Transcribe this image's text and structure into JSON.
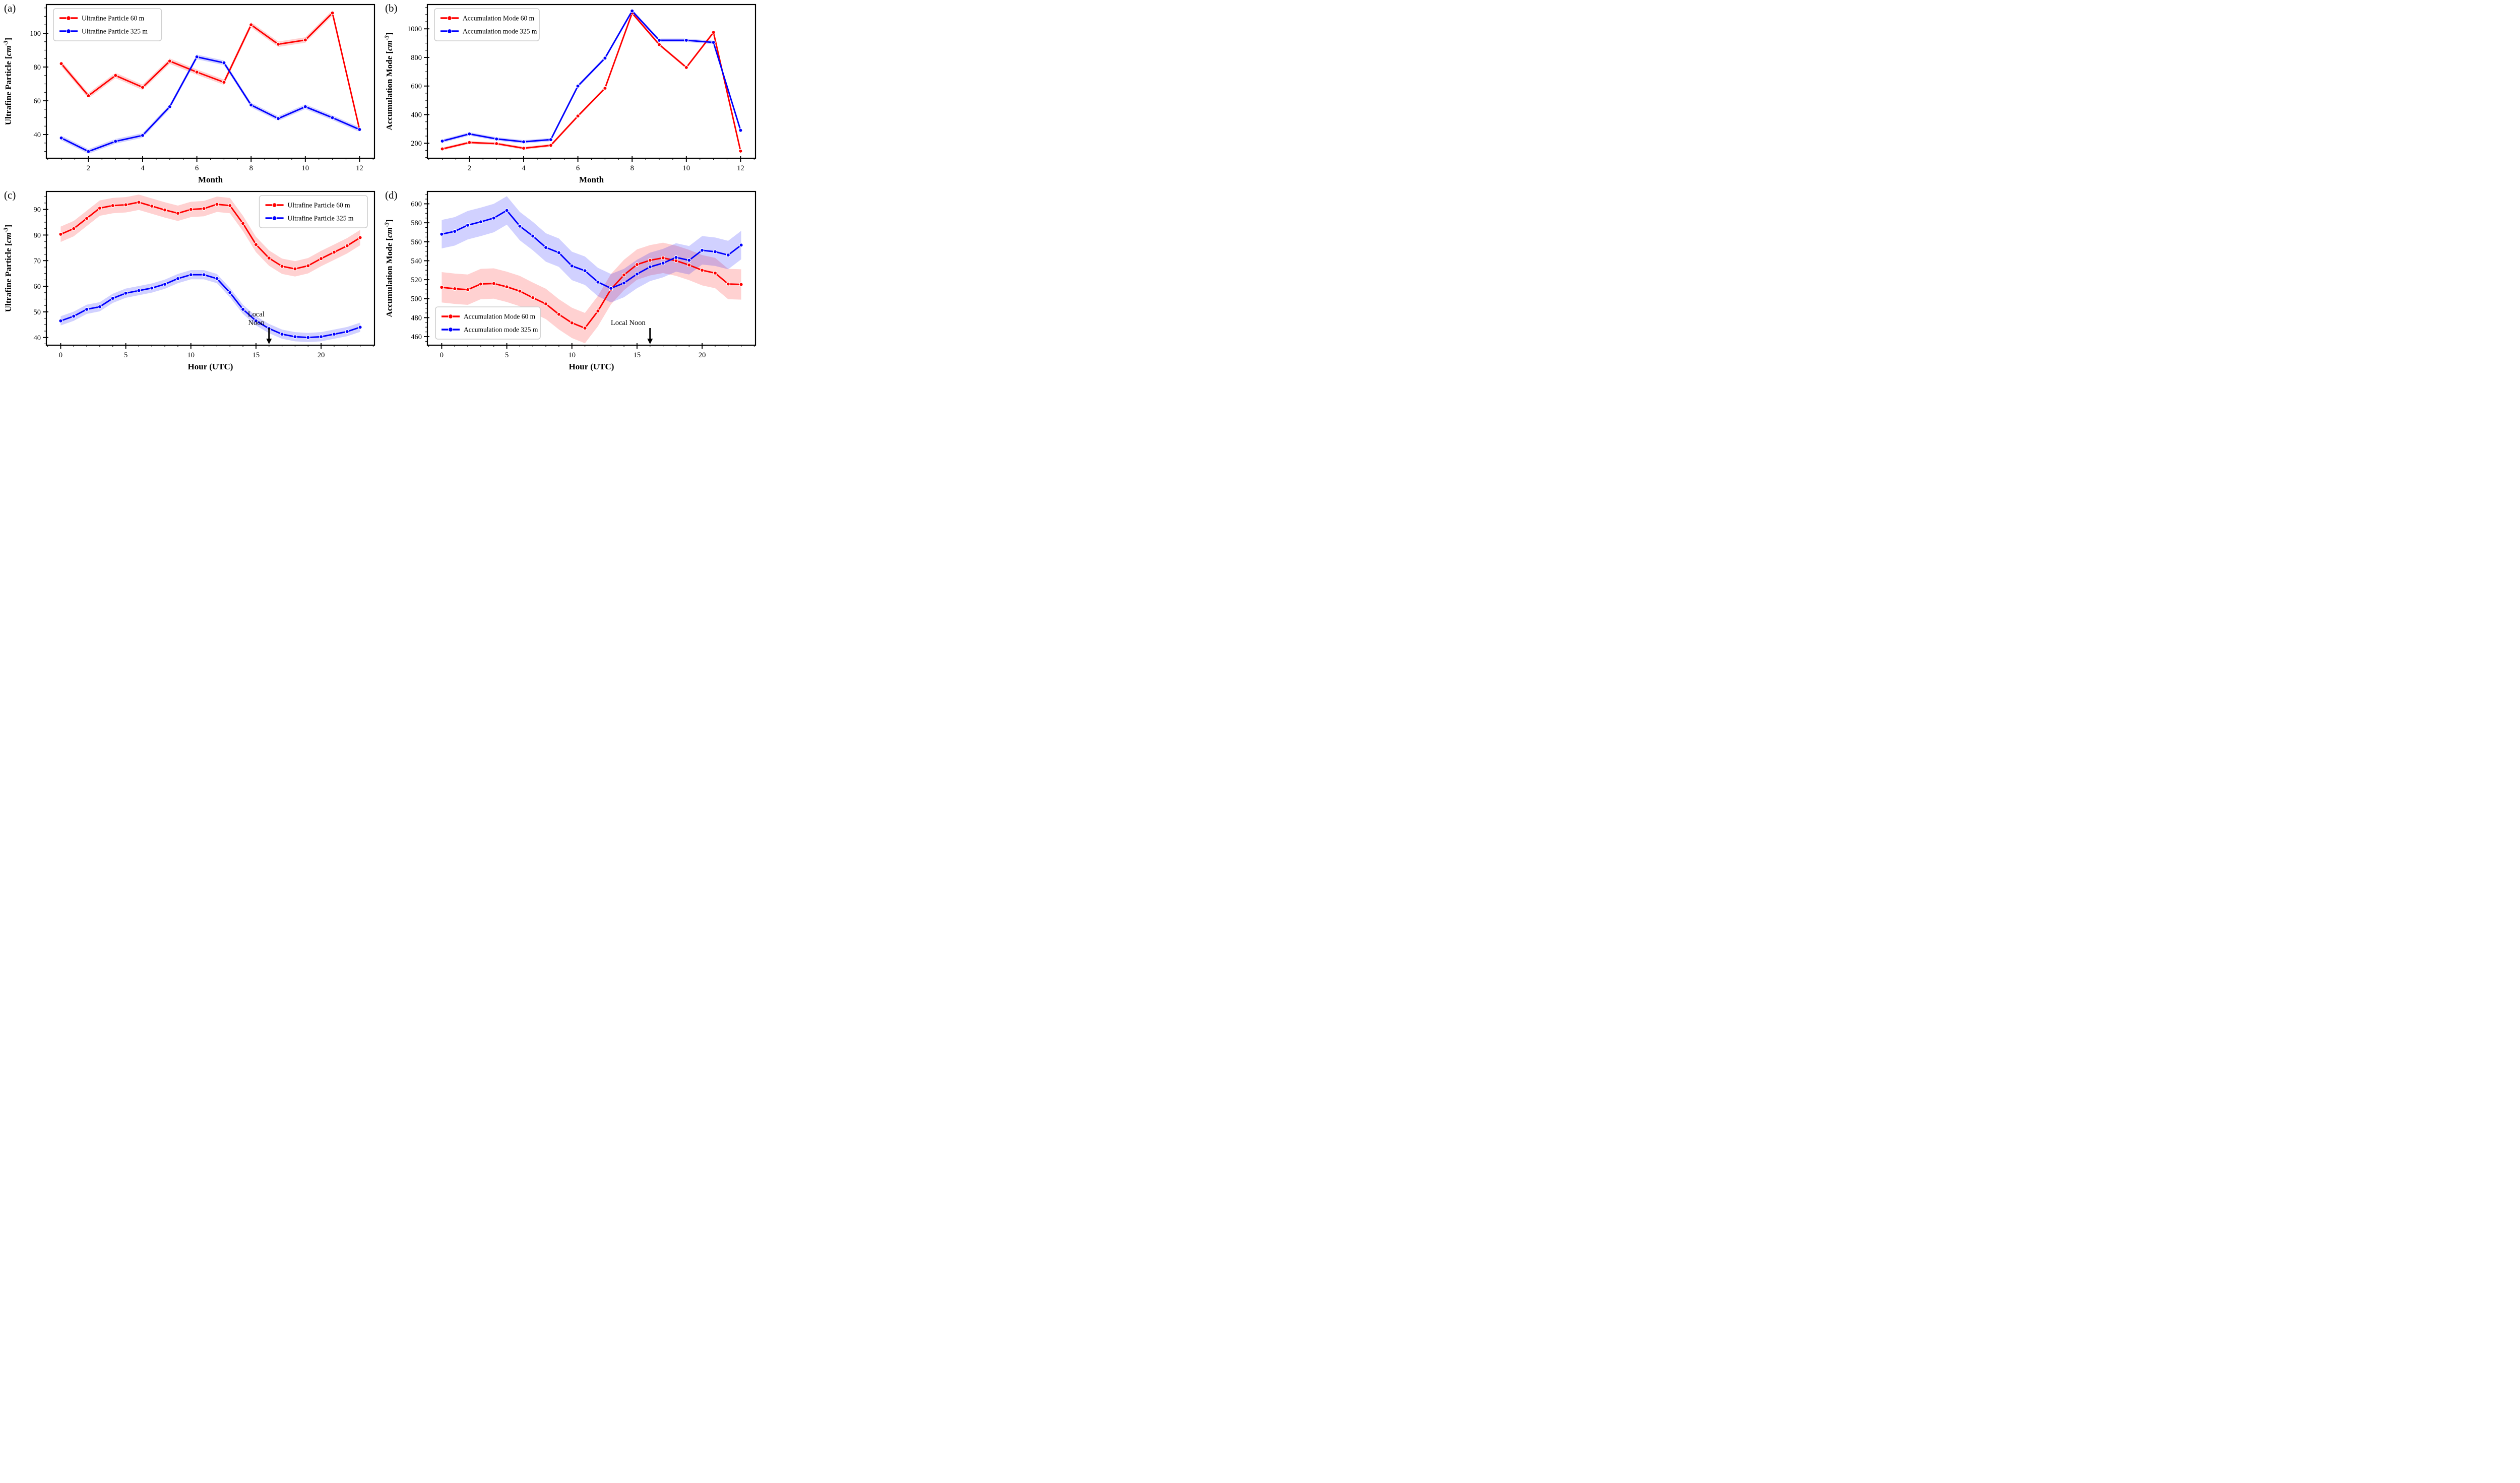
{
  "figure": {
    "background": "#ffffff",
    "accent_red": "#ff0000",
    "accent_blue": "#0000ff"
  },
  "chart_data": [
    {
      "id": "a",
      "type": "line",
      "corner_label": "(a)",
      "xlabel": "Month",
      "ylabel_prefix": "Ultrafine Particle",
      "ylabel_unit": "cm",
      "ylabel_exponent": "-3",
      "x": [
        1,
        2,
        3,
        4,
        5,
        6,
        7,
        8,
        9,
        10,
        11,
        12
      ],
      "xlim": [
        0.45,
        12.55
      ],
      "xticks": [
        2,
        4,
        6,
        8,
        10,
        12
      ],
      "minor_x_step": 0.5,
      "ylim": [
        26,
        117
      ],
      "yticks": [
        40,
        60,
        80,
        100
      ],
      "minor_y_step": 5,
      "legend": {
        "position": "top-left",
        "entries": [
          {
            "label": "Ultrafine Particle 60 m",
            "color": "#ff0000"
          },
          {
            "label": "Ultrafine Particle 325 m",
            "color": "#0000ff"
          }
        ]
      },
      "series": [
        {
          "name": "ultrafine-60m",
          "color": "#ff0000",
          "band": 1.6,
          "values": [
            82,
            63,
            75,
            68,
            83.5,
            77,
            71,
            105,
            93.5,
            96,
            112,
            43
          ]
        },
        {
          "name": "ultrafine-325m",
          "color": "#0000ff",
          "band": 1.4,
          "values": [
            38,
            30,
            36,
            39.5,
            56.5,
            86,
            82.5,
            57.5,
            49.5,
            56.5,
            50,
            43
          ]
        }
      ]
    },
    {
      "id": "b",
      "type": "line",
      "corner_label": "(b)",
      "xlabel": "Month",
      "ylabel_prefix": "Accumulation Mode",
      "ylabel_unit": "cm",
      "ylabel_exponent": "-3",
      "x": [
        1,
        2,
        3,
        4,
        5,
        6,
        7,
        8,
        9,
        10,
        11,
        12
      ],
      "xlim": [
        0.45,
        12.55
      ],
      "xticks": [
        2,
        4,
        6,
        8,
        10,
        12
      ],
      "minor_x_step": 0.5,
      "ylim": [
        95,
        1170
      ],
      "yticks": [
        200,
        400,
        600,
        800,
        1000
      ],
      "minor_y_step": 50,
      "legend": {
        "position": "top-left",
        "entries": [
          {
            "label": "Accumulation Mode 60 m",
            "color": "#ff0000"
          },
          {
            "label": "Accumulation mode 325 m",
            "color": "#0000ff"
          }
        ]
      },
      "series": [
        {
          "name": "accumulation-60m",
          "color": "#ff0000",
          "band": 10,
          "values": [
            160,
            205,
            197,
            165,
            185,
            390,
            585,
            1110,
            890,
            730,
            975,
            145
          ]
        },
        {
          "name": "accumulation-325m",
          "color": "#0000ff",
          "band": 12,
          "values": [
            215,
            265,
            230,
            210,
            225,
            600,
            795,
            1125,
            920,
            920,
            905,
            290
          ]
        }
      ]
    },
    {
      "id": "c",
      "type": "line",
      "corner_label": "(c)",
      "xlabel": "Hour (UTC)",
      "ylabel_prefix": "Ultrafine Particle",
      "ylabel_unit": "cm",
      "ylabel_exponent": "-3",
      "x": [
        0,
        1,
        2,
        3,
        4,
        5,
        6,
        7,
        8,
        9,
        10,
        11,
        12,
        13,
        14,
        15,
        16,
        17,
        18,
        19,
        20,
        21,
        22,
        23
      ],
      "xlim": [
        -1.1,
        24.1
      ],
      "xticks": [
        0,
        5,
        10,
        15,
        20
      ],
      "minor_x_step": 1,
      "ylim": [
        37,
        97
      ],
      "yticks": [
        40,
        50,
        60,
        70,
        80,
        90
      ],
      "minor_y_step": 2.5,
      "annotation": {
        "lines": [
          "Local",
          "Noon"
        ],
        "arrow_x": 16
      },
      "legend": {
        "position": "top-right",
        "entries": [
          {
            "label": "Ultrafine Particle 60 m",
            "color": "#ff0000"
          },
          {
            "label": "Ultrafine Particle 325 m",
            "color": "#0000ff"
          }
        ]
      },
      "series": [
        {
          "name": "ultrafine-60m",
          "color": "#ff0000",
          "band": 3.0,
          "values": [
            80.3,
            82.5,
            86.5,
            90.5,
            91.5,
            91.8,
            92.8,
            91.3,
            89.8,
            88.5,
            90,
            90.3,
            92,
            91.5,
            84.5,
            76.3,
            71,
            67.8,
            66.8,
            68,
            70.8,
            73.3,
            75.8,
            79
          ]
        },
        {
          "name": "ultrafine-325m",
          "color": "#0000ff",
          "band": 1.8,
          "values": [
            46.5,
            48.3,
            51,
            52,
            55.3,
            57.3,
            58.3,
            59.3,
            60.8,
            63,
            64.5,
            64.5,
            63,
            57.5,
            51,
            46.5,
            43.5,
            41.3,
            40.3,
            40,
            40.3,
            41.3,
            42.3,
            44
          ]
        }
      ]
    },
    {
      "id": "d",
      "type": "line",
      "corner_label": "(d)",
      "xlabel": "Hour (UTC)",
      "ylabel_prefix": "Accumulation Mode",
      "ylabel_unit": "cm",
      "ylabel_exponent": "-3",
      "x": [
        0,
        1,
        2,
        3,
        4,
        5,
        6,
        7,
        8,
        9,
        10,
        11,
        12,
        13,
        14,
        15,
        16,
        17,
        18,
        19,
        20,
        21,
        22,
        23
      ],
      "xlim": [
        -1.1,
        24.1
      ],
      "xticks": [
        0,
        5,
        10,
        15,
        20
      ],
      "minor_x_step": 1,
      "ylim": [
        451,
        613
      ],
      "yticks": [
        460,
        480,
        500,
        520,
        540,
        560,
        580,
        600
      ],
      "minor_y_step": 5,
      "annotation": {
        "lines": [
          "Local Noon"
        ],
        "arrow_x": 16
      },
      "legend": {
        "position": "bottom-left",
        "entries": [
          {
            "label": "Accumulation Mode 60 m",
            "color": "#ff0000"
          },
          {
            "label": "Accumulation mode 325 m",
            "color": "#0000ff"
          }
        ]
      },
      "series": [
        {
          "name": "accumulation-60m",
          "color": "#ff0000",
          "band": 16,
          "values": [
            512,
            510.5,
            509.5,
            515.5,
            516,
            512.5,
            508,
            501,
            494.5,
            483.5,
            474.5,
            469,
            487,
            510,
            525,
            536,
            540.5,
            543,
            540,
            535.5,
            530,
            527,
            515.5,
            515
          ]
        },
        {
          "name": "accumulation-325m",
          "color": "#0000ff",
          "band": 15,
          "values": [
            568,
            571,
            577.5,
            581,
            585,
            593,
            576.5,
            566,
            554,
            548.5,
            534.5,
            529.5,
            517.5,
            511,
            516.5,
            526,
            533.5,
            537.5,
            543.5,
            540.5,
            551,
            549.5,
            546,
            556.5
          ]
        }
      ]
    }
  ]
}
